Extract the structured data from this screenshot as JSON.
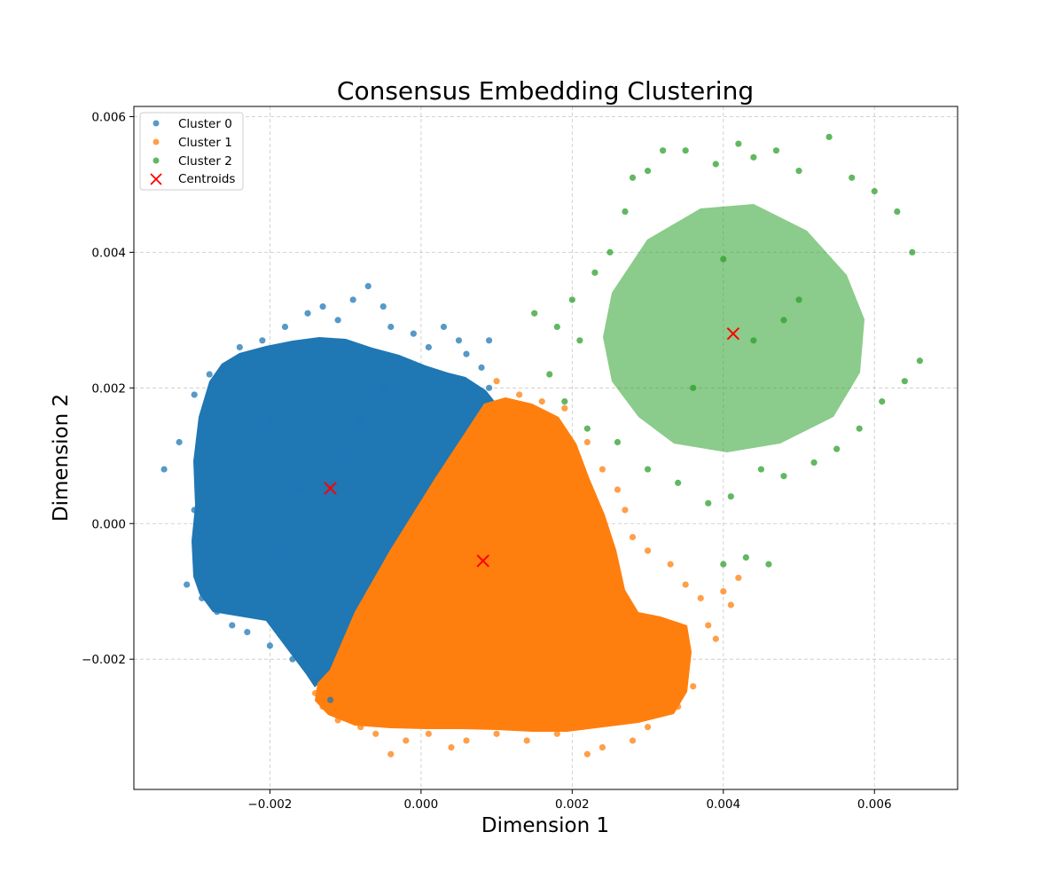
{
  "chart_data": {
    "type": "scatter",
    "title": "Consensus Embedding Clustering",
    "xlabel": "Dimension 1",
    "ylabel": "Dimension 2",
    "xlim": [
      -0.0038,
      0.0071
    ],
    "ylim": [
      -0.00392,
      0.00615
    ],
    "xticks": [
      -0.002,
      0.0,
      0.002,
      0.004,
      0.006
    ],
    "xtick_labels": [
      "−0.002",
      "0.000",
      "0.002",
      "0.004",
      "0.006"
    ],
    "yticks": [
      -0.002,
      0.0,
      0.002,
      0.004,
      0.006
    ],
    "ytick_labels": [
      "−0.002",
      "0.000",
      "0.002",
      "0.004",
      "0.006"
    ],
    "grid": true,
    "legend_position": "top-left",
    "series": [
      {
        "name": "Cluster 0",
        "color": "#1f77b4",
        "marker": "circle",
        "points": [
          [
            -0.0034,
            0.0008
          ],
          [
            -0.0032,
            0.0012
          ],
          [
            -0.0031,
            -0.0009
          ],
          [
            -0.003,
            0.0019
          ],
          [
            -0.0029,
            -0.0011
          ],
          [
            -0.003,
            0.0002
          ],
          [
            -0.0028,
            0.0022
          ],
          [
            -0.0027,
            -0.0013
          ],
          [
            -0.0026,
            0.0023
          ],
          [
            -0.0025,
            -0.0015
          ],
          [
            -0.0024,
            0.0026
          ],
          [
            -0.0023,
            -0.0016
          ],
          [
            -0.0021,
            0.0027
          ],
          [
            -0.002,
            -0.0018
          ],
          [
            -0.0018,
            0.0029
          ],
          [
            -0.0017,
            -0.002
          ],
          [
            -0.0015,
            0.0031
          ],
          [
            -0.0014,
            -0.0023
          ],
          [
            -0.0013,
            0.0032
          ],
          [
            -0.0012,
            -0.0026
          ],
          [
            -0.0011,
            0.003
          ],
          [
            -0.0009,
            0.0033
          ],
          [
            -0.0007,
            0.0035
          ],
          [
            -0.0005,
            0.0032
          ],
          [
            -0.0004,
            0.0029
          ],
          [
            -0.0001,
            0.0028
          ],
          [
            0.0001,
            0.0026
          ],
          [
            0.0003,
            0.0029
          ],
          [
            0.0005,
            0.0027
          ],
          [
            0.0006,
            0.0025
          ],
          [
            0.0008,
            0.0023
          ],
          [
            0.0009,
            0.0027
          ],
          [
            0.0009,
            0.002
          ],
          [
            -0.0016,
            0.0005
          ],
          [
            -0.001,
            0.001
          ],
          [
            -0.002,
            0.0015
          ],
          [
            -0.0008,
            0.0015
          ],
          [
            -0.0005,
            0.002
          ],
          [
            0.0002,
            0.0021
          ],
          [
            -0.0018,
            -0.0005
          ]
        ]
      },
      {
        "name": "Cluster 1",
        "color": "#ff7f0e",
        "marker": "circle",
        "points": [
          [
            0.001,
            0.0021
          ],
          [
            0.0013,
            0.0019
          ],
          [
            0.0016,
            0.0018
          ],
          [
            0.0019,
            0.0017
          ],
          [
            0.0022,
            0.0012
          ],
          [
            0.0024,
            0.0008
          ],
          [
            0.0026,
            0.0005
          ],
          [
            0.0027,
            0.0002
          ],
          [
            0.0028,
            -0.0002
          ],
          [
            0.003,
            -0.0004
          ],
          [
            0.0033,
            -0.0006
          ],
          [
            0.0035,
            -0.0009
          ],
          [
            0.0037,
            -0.0011
          ],
          [
            0.0038,
            -0.0015
          ],
          [
            0.0039,
            -0.0017
          ],
          [
            0.004,
            -0.001
          ],
          [
            0.0041,
            -0.0012
          ],
          [
            0.0042,
            -0.0008
          ],
          [
            0.0036,
            -0.0024
          ],
          [
            0.0034,
            -0.0027
          ],
          [
            0.003,
            -0.003
          ],
          [
            0.0028,
            -0.0032
          ],
          [
            0.0024,
            -0.0033
          ],
          [
            0.0022,
            -0.0034
          ],
          [
            0.0018,
            -0.0031
          ],
          [
            0.0014,
            -0.0032
          ],
          [
            0.001,
            -0.0031
          ],
          [
            0.0006,
            -0.0032
          ],
          [
            0.0004,
            -0.0033
          ],
          [
            0.0001,
            -0.0031
          ],
          [
            -0.0002,
            -0.0032
          ],
          [
            -0.0004,
            -0.0034
          ],
          [
            -0.0006,
            -0.0031
          ],
          [
            -0.0008,
            -0.003
          ],
          [
            -0.0011,
            -0.0029
          ],
          [
            -0.0013,
            -0.0027
          ],
          [
            -0.0014,
            -0.0025
          ],
          [
            0.0003,
            -0.001
          ],
          [
            0.0012,
            0.0005
          ],
          [
            0.002,
            -0.0015
          ]
        ]
      },
      {
        "name": "Cluster 2",
        "color": "#2ca02c",
        "marker": "circle",
        "points": [
          [
            0.0015,
            0.0031
          ],
          [
            0.0018,
            0.0029
          ],
          [
            0.002,
            0.0033
          ],
          [
            0.0021,
            0.0027
          ],
          [
            0.0023,
            0.0037
          ],
          [
            0.0025,
            0.004
          ],
          [
            0.0027,
            0.0046
          ],
          [
            0.0028,
            0.0051
          ],
          [
            0.003,
            0.0052
          ],
          [
            0.0032,
            0.0055
          ],
          [
            0.0035,
            0.0055
          ],
          [
            0.0039,
            0.0053
          ],
          [
            0.0042,
            0.0056
          ],
          [
            0.0044,
            0.0054
          ],
          [
            0.0047,
            0.0055
          ],
          [
            0.005,
            0.0052
          ],
          [
            0.0054,
            0.0057
          ],
          [
            0.0057,
            0.0051
          ],
          [
            0.006,
            0.0049
          ],
          [
            0.0063,
            0.0046
          ],
          [
            0.0065,
            0.004
          ],
          [
            0.0066,
            0.0024
          ],
          [
            0.0064,
            0.0021
          ],
          [
            0.0061,
            0.0018
          ],
          [
            0.0058,
            0.0014
          ],
          [
            0.0055,
            0.0011
          ],
          [
            0.0052,
            0.0009
          ],
          [
            0.0048,
            0.0007
          ],
          [
            0.0045,
            0.0008
          ],
          [
            0.0041,
            0.0004
          ],
          [
            0.0038,
            0.0003
          ],
          [
            0.0034,
            0.0006
          ],
          [
            0.003,
            0.0008
          ],
          [
            0.0026,
            0.0012
          ],
          [
            0.0022,
            0.0014
          ],
          [
            0.0019,
            0.0018
          ],
          [
            0.0017,
            0.0022
          ],
          [
            0.004,
            -0.0006
          ],
          [
            0.0043,
            -0.0005
          ],
          [
            0.0046,
            -0.0006
          ],
          [
            0.0044,
            0.0027
          ],
          [
            0.0048,
            0.003
          ],
          [
            0.0036,
            0.002
          ],
          [
            0.005,
            0.0033
          ],
          [
            0.004,
            0.0039
          ]
        ]
      }
    ],
    "centroids": {
      "name": "Centroids",
      "color": "#ff0000",
      "marker": "x",
      "points": [
        [
          -0.0012,
          0.00052
        ],
        [
          0.00082,
          -0.00055
        ],
        [
          0.00413,
          0.0028
        ]
      ]
    }
  }
}
